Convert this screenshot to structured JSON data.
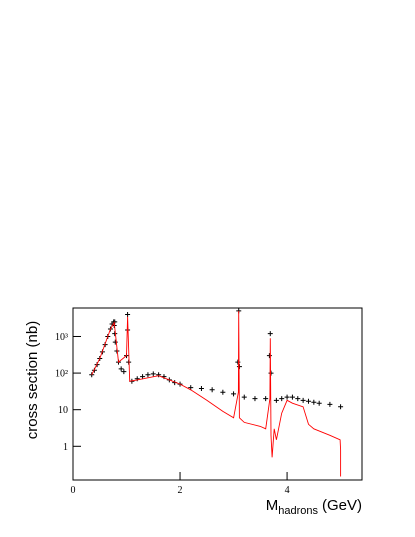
{
  "chart_data": {
    "type": "scatter",
    "y_label": "cross section (nb)",
    "x_label": {
      "main": "M",
      "sub": "hadrons",
      "unit": "(GeV)"
    },
    "xlim": [
      0,
      5.4
    ],
    "xticks": [
      0,
      2,
      4
    ],
    "ylim": [
      0.12,
      6000
    ],
    "log_y": true,
    "yticks": [
      1,
      10,
      {
        "value": 100,
        "label": "10²"
      },
      {
        "value": 1000,
        "label": "10³"
      }
    ],
    "series": [
      {
        "color": "#000000",
        "marker": "cross",
        "x": [
          0.35,
          0.4,
          0.45,
          0.5,
          0.55,
          0.6,
          0.65,
          0.7,
          0.73,
          0.76,
          0.77,
          0.78,
          0.78,
          0.79,
          0.82,
          0.85,
          0.9,
          0.95,
          1.0,
          1.02,
          1.02,
          1.04,
          1.1,
          1.2,
          1.3,
          1.4,
          1.5,
          1.6,
          1.7,
          1.8,
          1.9,
          2.0,
          2.2,
          2.4,
          2.6,
          2.8,
          3.0,
          3.08,
          3.097,
          3.11,
          3.2,
          3.4,
          3.6,
          3.67,
          3.686,
          3.7,
          3.8,
          3.9,
          4.0,
          4.1,
          4.2,
          4.3,
          4.4,
          4.5,
          4.6,
          4.8,
          5.0
        ],
        "values": [
          90,
          120,
          170,
          250,
          380,
          600,
          1000,
          1600,
          2200,
          2500,
          2000,
          2500,
          1200,
          700,
          400,
          200,
          130,
          110,
          300,
          4000,
          1500,
          200,
          60,
          70,
          80,
          90,
          95,
          90,
          80,
          65,
          55,
          50,
          40,
          38,
          35,
          30,
          27,
          200,
          5000,
          150,
          22,
          20,
          20,
          300,
          1200,
          100,
          18,
          20,
          22,
          22,
          20,
          18,
          17,
          16,
          15,
          14,
          12
        ]
      },
      {
        "color": "#ff0000",
        "marker": "line",
        "x": [
          0.35,
          0.5,
          0.7,
          0.77,
          0.85,
          1.0,
          1.02,
          1.06,
          1.2,
          1.6,
          2.0,
          2.2,
          2.5,
          2.8,
          3.0,
          3.09,
          3.097,
          3.11,
          3.2,
          3.5,
          3.6,
          3.68,
          3.686,
          3.7,
          3.72,
          3.76,
          3.8,
          3.9,
          4.0,
          4.1,
          4.3,
          4.4,
          4.5,
          4.8,
          4.99,
          5.0,
          5.0
        ],
        "values": [
          90,
          250,
          1600,
          2400,
          200,
          300,
          3500,
          60,
          65,
          85,
          50,
          35,
          18,
          9,
          6,
          30,
          5000,
          6,
          4.5,
          3.5,
          3,
          20,
          900,
          2,
          0.5,
          3,
          1.5,
          8,
          18,
          15,
          12,
          4,
          3,
          2,
          1.5,
          0.8,
          0.15
        ]
      }
    ]
  }
}
